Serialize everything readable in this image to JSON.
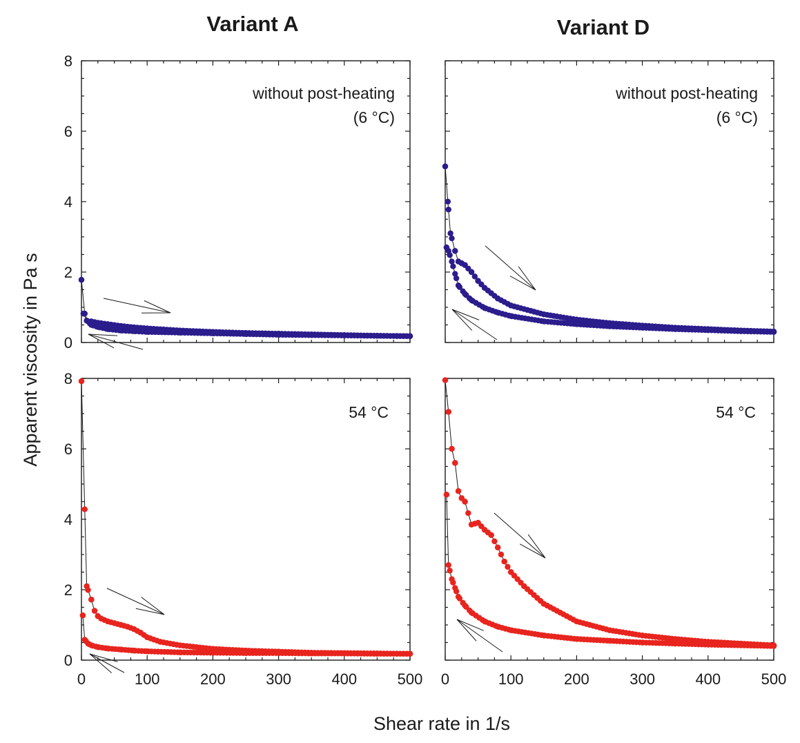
{
  "figure": {
    "column_titles": [
      "Variant A",
      "Variant D"
    ],
    "ylabel": "Apparent viscosity in Pa s",
    "xlabel": "Shear rate in 1/s"
  },
  "colors": {
    "blue_series": "#2b1d8c",
    "red_series": "#e8241e",
    "line": "#1a1a1a"
  },
  "chart_data": [
    {
      "panel": "Variant A, without post-heating",
      "type": "scatter",
      "title": "Variant A",
      "annotation": [
        "without post-heating",
        "(6 °C)"
      ],
      "xlim": [
        0,
        500
      ],
      "ylim": [
        0,
        8
      ],
      "xticks": [
        0,
        100,
        200,
        300,
        400,
        500
      ],
      "yticks": [
        0,
        2,
        4,
        6,
        8
      ],
      "series": [
        {
          "name": "increasing shear rate",
          "color": "#2b1d8c",
          "x": [
            0,
            5,
            10,
            15,
            25,
            40,
            60,
            80,
            100,
            150,
            200,
            250,
            300,
            350,
            400,
            450,
            500
          ],
          "y": [
            1.78,
            0.82,
            0.6,
            0.6,
            0.56,
            0.52,
            0.47,
            0.43,
            0.4,
            0.34,
            0.3,
            0.27,
            0.25,
            0.23,
            0.21,
            0.19,
            0.18
          ]
        },
        {
          "name": "decreasing shear rate",
          "color": "#2b1d8c",
          "x": [
            500,
            450,
            400,
            350,
            300,
            250,
            200,
            150,
            100,
            80,
            60,
            40,
            25,
            15,
            8,
            3
          ],
          "y": [
            0.18,
            0.19,
            0.2,
            0.21,
            0.22,
            0.24,
            0.26,
            0.28,
            0.3,
            0.32,
            0.34,
            0.38,
            0.44,
            0.5,
            0.62,
            0.82
          ]
        }
      ]
    },
    {
      "panel": "Variant D, without post-heating",
      "type": "scatter",
      "title": "Variant D",
      "annotation": [
        "without post-heating",
        "(6 °C)"
      ],
      "xlim": [
        0,
        500
      ],
      "ylim": [
        0,
        8
      ],
      "xticks": [
        0,
        100,
        200,
        300,
        400,
        500
      ],
      "yticks": [
        0,
        2,
        4,
        6,
        8
      ],
      "series": [
        {
          "name": "increasing shear rate",
          "color": "#2b1d8c",
          "x": [
            0,
            4,
            8,
            15,
            20,
            25,
            30,
            40,
            50,
            60,
            80,
            100,
            150,
            200,
            250,
            300,
            350,
            400,
            450,
            500
          ],
          "y": [
            5.0,
            4.0,
            3.1,
            2.6,
            2.3,
            2.25,
            2.2,
            2.0,
            1.75,
            1.55,
            1.25,
            1.05,
            0.8,
            0.65,
            0.55,
            0.48,
            0.42,
            0.38,
            0.34,
            0.31
          ]
        },
        {
          "name": "decreasing shear rate",
          "color": "#2b1d8c",
          "x": [
            500,
            450,
            400,
            350,
            300,
            250,
            200,
            150,
            100,
            80,
            60,
            40,
            30,
            20,
            15,
            10,
            5,
            2
          ],
          "y": [
            0.3,
            0.32,
            0.35,
            0.38,
            0.42,
            0.46,
            0.52,
            0.6,
            0.75,
            0.85,
            0.98,
            1.2,
            1.38,
            1.62,
            1.95,
            2.3,
            2.6,
            2.7
          ]
        }
      ]
    },
    {
      "panel": "Variant A, 54 °C",
      "type": "scatter",
      "annotation": [
        "54 °C"
      ],
      "xlim": [
        0,
        500
      ],
      "ylim": [
        0,
        8
      ],
      "xticks": [
        0,
        100,
        200,
        300,
        400,
        500
      ],
      "yticks": [
        0,
        2,
        4,
        6,
        8
      ],
      "series": [
        {
          "name": "increasing shear rate",
          "color": "#e8241e",
          "x": [
            0,
            8,
            15,
            20,
            25,
            30,
            40,
            50,
            60,
            70,
            80,
            90,
            100,
            120,
            150,
            200,
            250,
            300,
            350,
            400,
            450,
            500
          ],
          "y": [
            7.92,
            2.1,
            1.72,
            1.4,
            1.25,
            1.18,
            1.1,
            1.05,
            1.0,
            0.95,
            0.88,
            0.78,
            0.65,
            0.52,
            0.42,
            0.32,
            0.27,
            0.24,
            0.21,
            0.2,
            0.19,
            0.18
          ]
        },
        {
          "name": "decreasing shear rate",
          "color": "#e8241e",
          "x": [
            500,
            450,
            400,
            350,
            300,
            250,
            200,
            150,
            100,
            80,
            60,
            40,
            25,
            15,
            10,
            5,
            2
          ],
          "y": [
            0.18,
            0.18,
            0.19,
            0.19,
            0.2,
            0.2,
            0.21,
            0.22,
            0.25,
            0.27,
            0.3,
            0.33,
            0.37,
            0.42,
            0.47,
            0.58,
            1.27
          ]
        }
      ]
    },
    {
      "panel": "Variant D, 54 °C",
      "type": "scatter",
      "annotation": [
        "54 °C"
      ],
      "xlim": [
        0,
        500
      ],
      "ylim": [
        0,
        8
      ],
      "xticks": [
        0,
        100,
        200,
        300,
        400,
        500
      ],
      "yticks": [
        0,
        2,
        4,
        6,
        8
      ],
      "series": [
        {
          "name": "increasing shear rate",
          "color": "#e8241e",
          "x": [
            0,
            5,
            10,
            15,
            20,
            25,
            30,
            40,
            50,
            60,
            70,
            80,
            90,
            100,
            120,
            150,
            200,
            250,
            300,
            350,
            400,
            450,
            500
          ],
          "y": [
            7.95,
            7.05,
            6.0,
            5.6,
            4.8,
            4.6,
            4.5,
            3.85,
            3.9,
            3.7,
            3.55,
            3.2,
            2.8,
            2.5,
            2.1,
            1.6,
            1.1,
            0.85,
            0.7,
            0.6,
            0.52,
            0.47,
            0.42
          ]
        },
        {
          "name": "decreasing shear rate",
          "color": "#e8241e",
          "x": [
            500,
            450,
            400,
            350,
            300,
            250,
            200,
            150,
            100,
            80,
            60,
            40,
            30,
            20,
            15,
            10,
            5,
            2
          ],
          "y": [
            0.4,
            0.42,
            0.44,
            0.47,
            0.5,
            0.55,
            0.6,
            0.7,
            0.85,
            0.95,
            1.1,
            1.35,
            1.55,
            1.8,
            2.05,
            2.3,
            2.7,
            4.7
          ]
        }
      ]
    }
  ]
}
